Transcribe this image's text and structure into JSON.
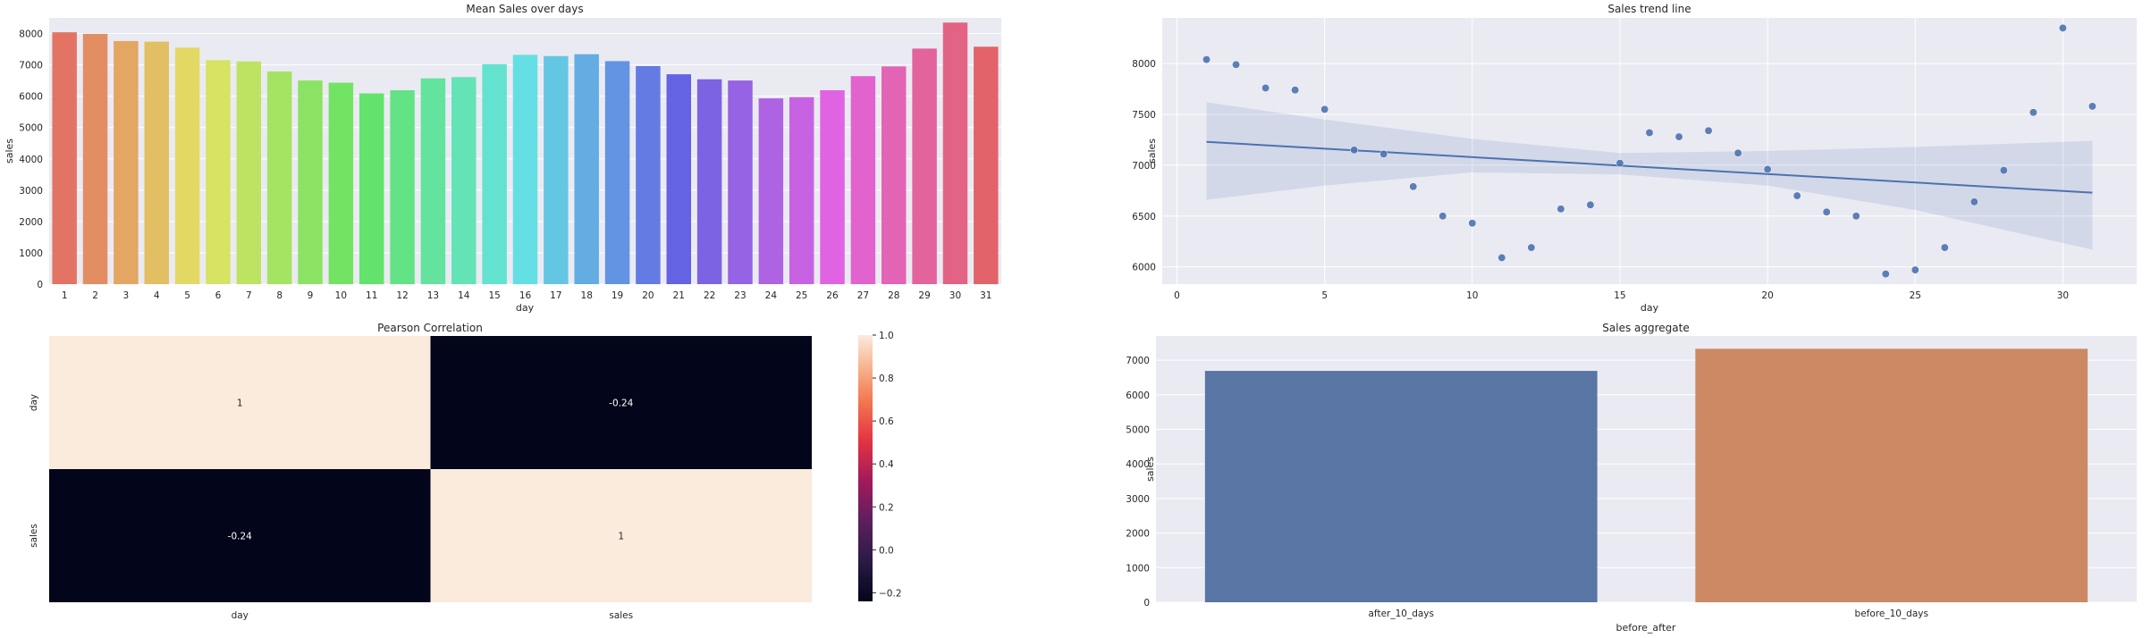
{
  "chart_data": [
    {
      "type": "bar",
      "title": "Mean Sales over days",
      "xlabel": "day",
      "ylabel": "sales",
      "categories": [
        "1",
        "2",
        "3",
        "4",
        "5",
        "6",
        "7",
        "8",
        "9",
        "10",
        "11",
        "12",
        "13",
        "14",
        "15",
        "16",
        "17",
        "18",
        "19",
        "20",
        "21",
        "22",
        "23",
        "24",
        "25",
        "26",
        "27",
        "28",
        "29",
        "30",
        "31"
      ],
      "values": [
        8040,
        7990,
        7760,
        7740,
        7550,
        7150,
        7110,
        6790,
        6500,
        6430,
        6090,
        6190,
        6570,
        6610,
        7020,
        7320,
        7280,
        7340,
        7120,
        6960,
        6700,
        6540,
        6500,
        5930,
        5970,
        6190,
        6640,
        6950,
        7520,
        8350,
        7580
      ],
      "ylim": [
        0,
        8500
      ],
      "yticks": [
        0,
        1000,
        2000,
        3000,
        4000,
        5000,
        6000,
        7000,
        8000
      ],
      "grid": true
    },
    {
      "type": "scatter",
      "title": "Sales trend line",
      "xlabel": "day",
      "ylabel": "sales",
      "x": [
        1,
        2,
        3,
        4,
        5,
        6,
        7,
        8,
        9,
        10,
        11,
        12,
        13,
        14,
        15,
        16,
        17,
        18,
        19,
        20,
        21,
        22,
        23,
        24,
        25,
        26,
        27,
        28,
        29,
        30,
        31
      ],
      "y": [
        8040,
        7990,
        7760,
        7740,
        7550,
        7150,
        7110,
        6790,
        6500,
        6430,
        6090,
        6190,
        6570,
        6610,
        7020,
        7320,
        7280,
        7340,
        7120,
        6960,
        6700,
        6540,
        6500,
        5930,
        5970,
        6190,
        6640,
        6950,
        7520,
        8350,
        7580
      ],
      "regression_line": {
        "x": [
          1,
          31
        ],
        "y": [
          7230,
          6730
        ]
      },
      "confidence_band": {
        "x": [
          1,
          5,
          10,
          15,
          20,
          25,
          31
        ],
        "upper": [
          7620,
          7450,
          7260,
          7120,
          7140,
          7180,
          7240
        ],
        "lower": [
          6660,
          6800,
          6930,
          6910,
          6800,
          6560,
          6170
        ]
      },
      "xlim": [
        -0.5,
        32.5
      ],
      "ylim": [
        5830,
        8450
      ],
      "xticks": [
        0,
        5,
        10,
        15,
        20,
        25,
        30
      ],
      "yticks": [
        6000,
        6500,
        7000,
        7500,
        8000
      ],
      "grid": true
    },
    {
      "type": "heatmap",
      "title": "Pearson Correlation",
      "rows": [
        "day",
        "sales"
      ],
      "cols": [
        "day",
        "sales"
      ],
      "values": [
        [
          1,
          -0.24
        ],
        [
          -0.24,
          1
        ]
      ],
      "annotations": [
        [
          "1",
          "-0.24"
        ],
        [
          "-0.24",
          "1"
        ]
      ],
      "colorbar": {
        "min": -0.24,
        "max": 1.0,
        "ticks": [
          1.0,
          0.8,
          0.6,
          0.4,
          0.2,
          0.0,
          -0.2
        ],
        "tick_labels": [
          "1.0",
          "0.8",
          "0.6",
          "0.4",
          "0.2",
          "0.0",
          "−0.2"
        ]
      }
    },
    {
      "type": "bar",
      "title": "Sales aggregate",
      "xlabel": "before_after",
      "ylabel": "sales",
      "categories": [
        "after_10_days",
        "before_10_days"
      ],
      "values": [
        6690,
        7330
      ],
      "colors": [
        "#5975a4",
        "#cc8963"
      ],
      "ylim": [
        0,
        7700
      ],
      "yticks": [
        0,
        1000,
        2000,
        3000,
        4000,
        5000,
        6000,
        7000
      ],
      "grid": true
    }
  ]
}
